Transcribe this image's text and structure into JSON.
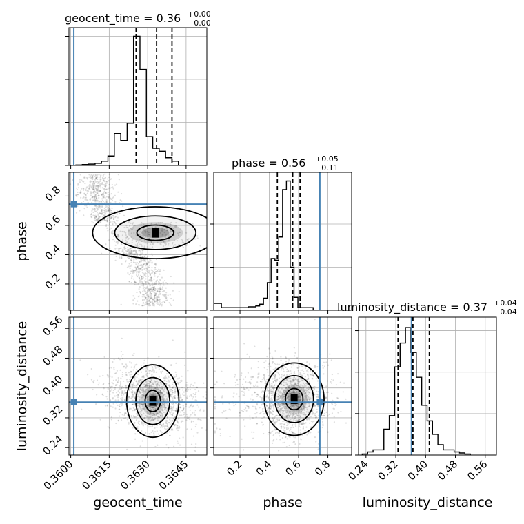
{
  "truth_color": "#4682b4",
  "line_color": "#000000",
  "chart_data": {
    "type": "corner",
    "parameters": [
      "geocent_time",
      "phase",
      "luminosity_distance"
    ],
    "truths": {
      "geocent_time": 0.36012,
      "phase": 0.745,
      "luminosity_distance": 0.362
    },
    "titles": [
      {
        "main": "geocent_time = 0.36",
        "sup": "+0.00",
        "sub": "−0.00"
      },
      {
        "main": "phase = 0.56",
        "sup": "+0.05",
        "sub": "−0.11"
      },
      {
        "main": "luminosity_distance = 0.37",
        "sup": "+0.04",
        "sub": "−0.04"
      }
    ],
    "axis_labels": {
      "geocent_time": "geocent_time",
      "phase": "phase",
      "luminosity_distance": "luminosity_distance"
    },
    "ticks": {
      "geocent_time": {
        "values": [
          0.36,
          0.3615,
          0.363,
          0.3645
        ],
        "labels": [
          "0.3600",
          "0.3615",
          "0.3630",
          "0.3645"
        ]
      },
      "phase": {
        "values": [
          0.2,
          0.4,
          0.6,
          0.8
        ],
        "labels": [
          "0.2",
          "0.4",
          "0.6",
          "0.8"
        ]
      },
      "luminosity_distance": {
        "values": [
          0.24,
          0.32,
          0.4,
          0.48,
          0.56
        ],
        "labels": [
          "0.24",
          "0.32",
          "0.40",
          "0.48",
          "0.56"
        ]
      }
    },
    "ranges": {
      "geocent_time": [
        0.35993,
        0.36531
      ],
      "phase": [
        0.021,
        0.962
      ],
      "luminosity_distance": [
        0.22,
        0.59
      ]
    },
    "quantiles": {
      "geocent_time": [
        0.36255,
        0.36335,
        0.36395
      ],
      "phase": [
        0.455,
        0.56,
        0.61
      ],
      "luminosity_distance": [
        0.326,
        0.366,
        0.41
      ]
    },
    "histograms": {
      "geocent_time": {
        "edges_start": 0.3602,
        "bin_width": 0.00025,
        "counts": [
          1,
          2,
          3,
          5,
          10,
          22,
          74,
          58,
          98,
          300,
          223,
          67,
          40,
          33,
          18,
          10
        ]
      },
      "phase": {
        "edges_start": 0.021,
        "bin_width": 0.0261,
        "counts": [
          8,
          8,
          3,
          3,
          3,
          3,
          3,
          3,
          3,
          4,
          4,
          5,
          7,
          14,
          32,
          60,
          58,
          85,
          140,
          150,
          50,
          15,
          3,
          3,
          3,
          3
        ]
      },
      "luminosity_distance": {
        "edges_start": 0.23,
        "bin_width": 0.0145,
        "counts": [
          1,
          3,
          5,
          5,
          25,
          38,
          85,
          108,
          123,
          99,
          75,
          48,
          33,
          20,
          10,
          5,
          5,
          3,
          2,
          1
        ]
      }
    },
    "hist_ymax": {
      "geocent_time": 320,
      "phase": 160,
      "luminosity_distance": 133
    },
    "hist_yticks": {
      "geocent_time": [
        0,
        100,
        200,
        300
      ],
      "phase": [
        0,
        50,
        100,
        150
      ],
      "luminosity_distance": [
        0,
        40,
        80,
        120
      ]
    },
    "grid": true,
    "legend": "none"
  }
}
